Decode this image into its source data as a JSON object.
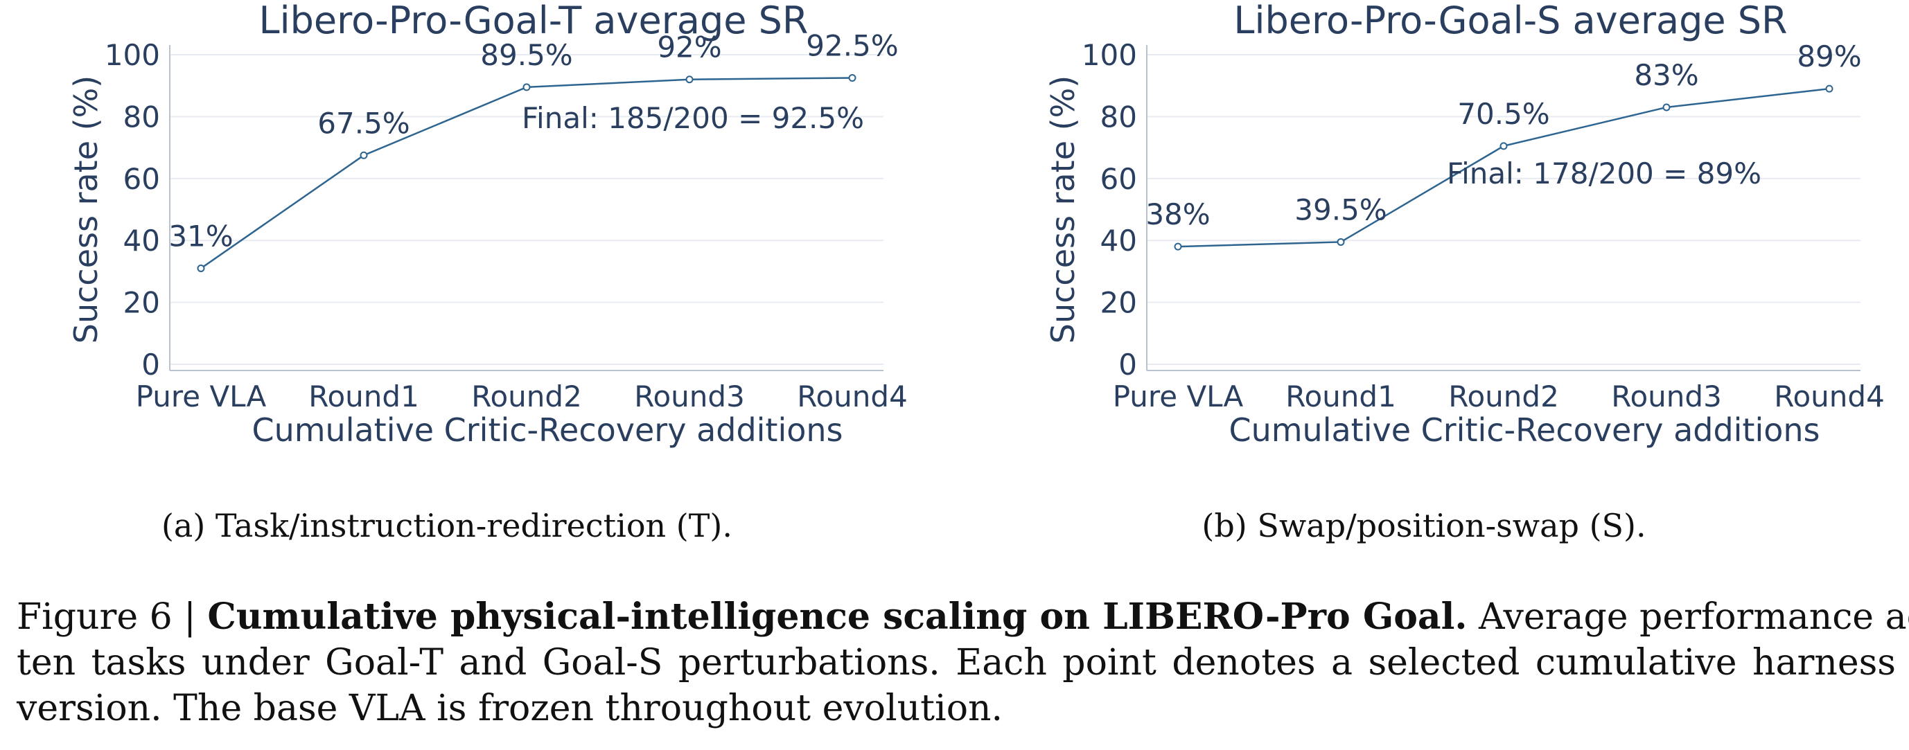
{
  "chart_data": [
    {
      "type": "line",
      "title": "Libero-Pro-Goal-T average SR",
      "xlabel": "Cumulative Critic-Recovery additions",
      "ylabel": "Success rate (%)",
      "categories": [
        "Pure VLA",
        "Round1",
        "Round2",
        "Round3",
        "Round4"
      ],
      "values": [
        31,
        67.5,
        89.5,
        92,
        92.5
      ],
      "data_labels": [
        "31%",
        "67.5%",
        "89.5%",
        "92%",
        "92.5%"
      ],
      "yticks": [
        0,
        20,
        40,
        60,
        80,
        100
      ],
      "ylim": [
        -2,
        102
      ],
      "annotation": "Final: 185/200 = 92.5%",
      "grid": true,
      "line_color": "#2e6590"
    },
    {
      "type": "line",
      "title": "Libero-Pro-Goal-S average SR",
      "xlabel": "Cumulative Critic-Recovery additions",
      "ylabel": "Success rate (%)",
      "categories": [
        "Pure VLA",
        "Round1",
        "Round2",
        "Round3",
        "Round4"
      ],
      "values": [
        38,
        39.5,
        70.5,
        83,
        89
      ],
      "data_labels": [
        "38%",
        "39.5%",
        "70.5%",
        "83%",
        "89%"
      ],
      "yticks": [
        0,
        20,
        40,
        60,
        80,
        100
      ],
      "ylim": [
        -2,
        102
      ],
      "annotation": "Final: 178/200 = 89%",
      "grid": true,
      "line_color": "#2e6590"
    }
  ],
  "captions": {
    "sub_a": "(a) Task/instruction-redirection (T).",
    "sub_b": "(b) Swap/position-swap (S).",
    "figure_prefix": "Figure 6 | ",
    "figure_bold": "Cumulative physical-intelligence scaling on LIBERO-Pro Goal.",
    "figure_text_1": " Average performance across",
    "figure_text_2": "ten tasks under Goal-T and Goal-S perturbations. Each point denotes a selected cumulative harness",
    "figure_text_3": "version. The base VLA is frozen throughout evolution."
  }
}
